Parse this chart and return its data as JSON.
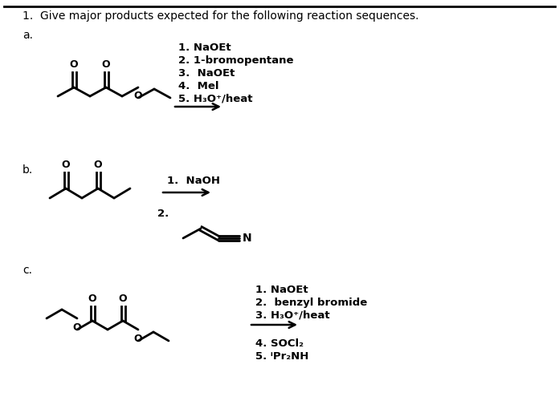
{
  "title": "1.  Give major products expected for the following reaction sequences.",
  "bg_color": "#ffffff",
  "text_color": "#000000",
  "reagents_a": [
    "1. NaOEt",
    "2. 1-bromopentane",
    "3.  NaOEt",
    "4.  Mel",
    "5. H₃O⁺/heat"
  ],
  "reagents_b_1": "1.  NaOH",
  "reagents_b_2": "2.",
  "reagents_c_top": [
    "1. NaOEt",
    "2.  benzyl bromide",
    "3. H₃O⁺/heat"
  ],
  "reagents_c_bot": [
    "4. SOCl₂",
    "5. ⁱPr₂NH"
  ],
  "section_a": "a.",
  "section_b": "b.",
  "section_c": "c.",
  "N_label": "N"
}
